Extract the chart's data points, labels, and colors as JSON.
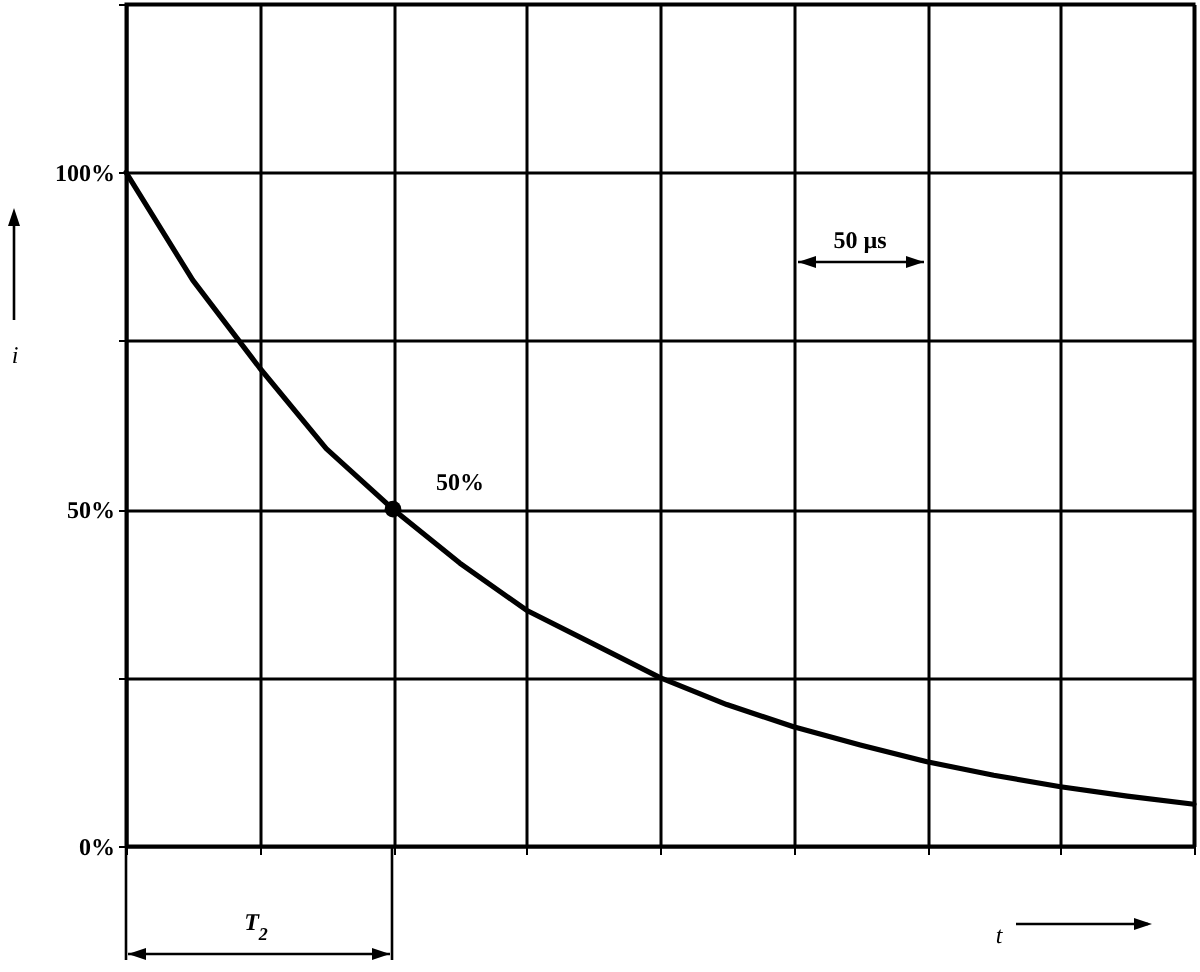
{
  "chart_data": {
    "type": "line",
    "ylabel": "i",
    "xlabel": "t",
    "categories": [
      null,
      null,
      null,
      null,
      null,
      null,
      null,
      null,
      null,
      null,
      null,
      null,
      null,
      null,
      null,
      null,
      null
    ],
    "ylim": [
      0,
      125
    ],
    "yticks": [
      {
        "value": 0,
        "label": "0%"
      },
      {
        "value": 25,
        "label": null
      },
      {
        "value": 50,
        "label": "50%"
      },
      {
        "value": 75,
        "label": null
      },
      {
        "value": 100,
        "label": "100%"
      },
      {
        "value": 125,
        "label": null
      }
    ],
    "tick_labels": "y",
    "grid": true,
    "series": [
      {
        "color": "#000000",
        "values": [
          100,
          84,
          71,
          59,
          50,
          42,
          35,
          30,
          25,
          21,
          17.7,
          15,
          12.5,
          10.5,
          8.8,
          7.4,
          6.2
        ]
      },
      {
        "type": "scatter",
        "color": "#000000",
        "values": [
          null,
          null,
          null,
          null,
          50,
          null,
          null,
          null,
          null,
          null,
          null,
          null,
          null,
          null,
          null,
          null,
          null
        ]
      }
    ],
    "annotations": [
      "50%",
      "50 µs",
      "T$_{2}$"
    ]
  }
}
